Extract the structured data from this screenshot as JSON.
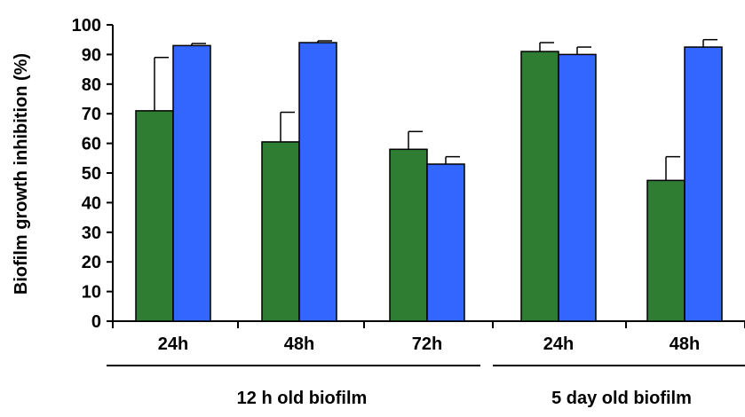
{
  "chart_data": {
    "type": "bar",
    "ylabel": "Biofilm growth inhibition (%)",
    "ylim": [
      0,
      100
    ],
    "yticks": [
      0,
      10,
      20,
      30,
      40,
      50,
      60,
      70,
      80,
      90,
      100
    ],
    "categories": [
      "24h",
      "48h",
      "72h",
      "24h",
      "48h"
    ],
    "groups": [
      {
        "label": "12 h old biofilm",
        "categories": [
          0,
          1,
          2
        ]
      },
      {
        "label": "5 day old biofilm",
        "categories": [
          3,
          4
        ]
      }
    ],
    "series": [
      {
        "color": "#2e7d32",
        "values": [
          71,
          60.5,
          58,
          91,
          47.5
        ],
        "errors": [
          18,
          10,
          6,
          3,
          8
        ]
      },
      {
        "color": "#3366ff",
        "values": [
          93,
          94,
          53,
          90,
          92.5
        ],
        "errors": [
          0.7,
          0.6,
          2.5,
          2.5,
          2.5
        ]
      }
    ],
    "grid": false,
    "legend": "none"
  }
}
